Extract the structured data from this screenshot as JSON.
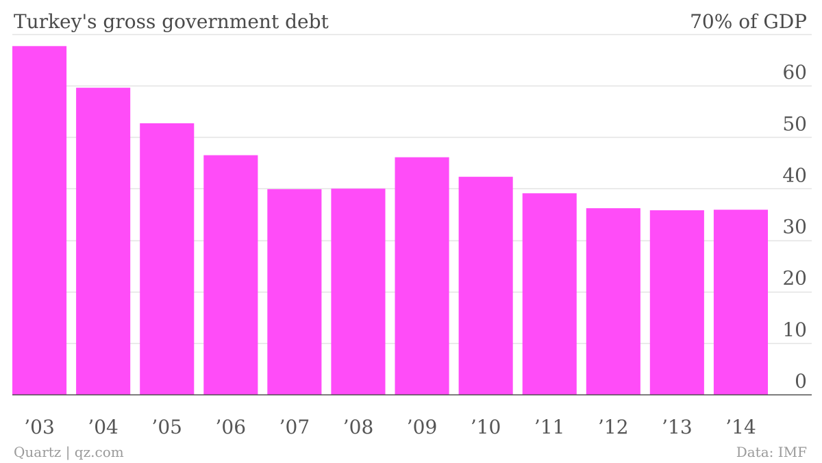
{
  "chart_data": {
    "type": "bar",
    "title": "Turkey's gross government debt",
    "unit_label": "70% of GDP",
    "categories": [
      "’03",
      "’04",
      "’05",
      "’06",
      "’07",
      "’08",
      "’09",
      "’10",
      "’11",
      "’12",
      "’13",
      "’14"
    ],
    "values": [
      67.7,
      59.6,
      52.7,
      46.5,
      39.9,
      40.0,
      46.1,
      42.3,
      39.1,
      36.2,
      35.8,
      35.9
    ],
    "y_ticks": [
      "0",
      "10",
      "20",
      "30",
      "40",
      "50",
      "60"
    ],
    "ylim": [
      0,
      70
    ],
    "grid": true,
    "y_axis_position": "right",
    "bar_color": "#ff4cf8"
  },
  "footer": {
    "source_left": "Quartz | qz.com",
    "source_right": "Data: IMF"
  }
}
